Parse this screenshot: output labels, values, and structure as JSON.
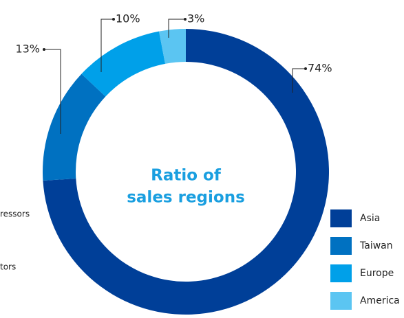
{
  "chart_data": {
    "type": "pie",
    "donut": true,
    "title_lines": [
      "Ratio of",
      "sales regions"
    ],
    "categories": [
      "Asia",
      "Taiwan",
      "Europe",
      "America"
    ],
    "values": [
      74,
      13,
      10,
      3
    ],
    "value_labels": [
      "74%",
      "13%",
      "10%",
      "3%"
    ],
    "colors": [
      "#003f98",
      "#0071c1",
      "#00a0e9",
      "#5bc5f2"
    ],
    "legend": "bottom-right",
    "annotations": [
      "ressors",
      "tors"
    ]
  }
}
